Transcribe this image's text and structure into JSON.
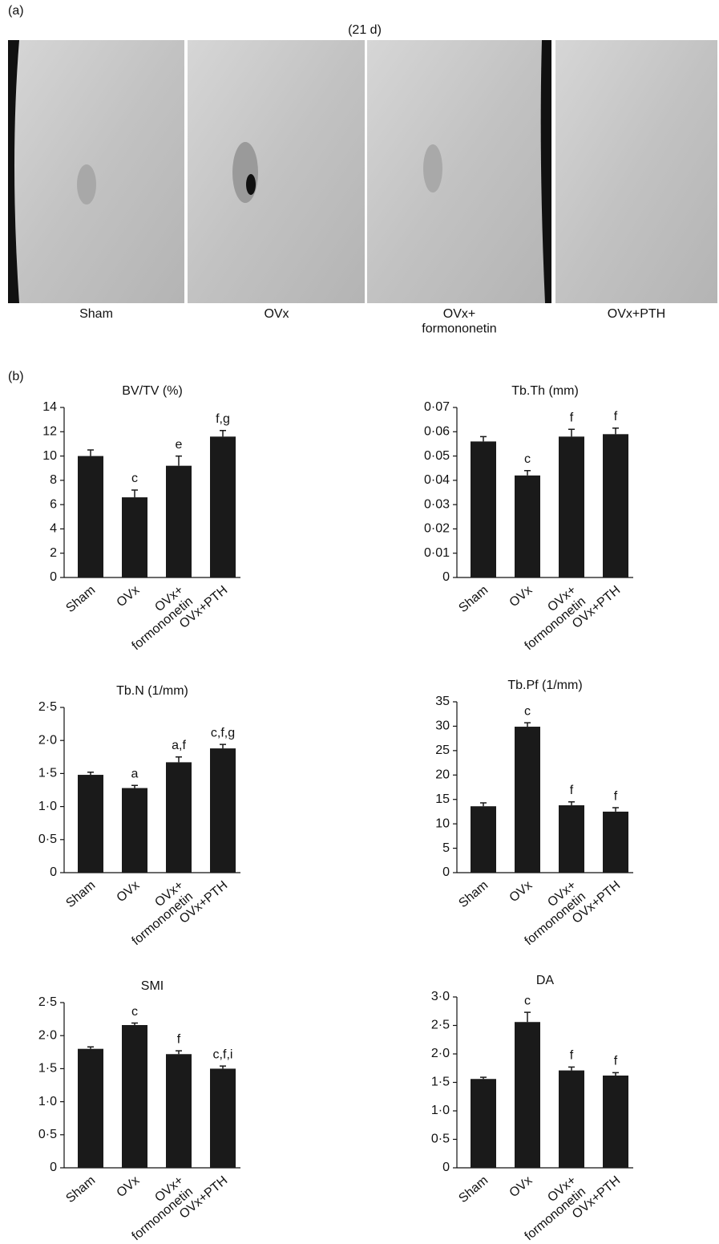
{
  "panel_a": {
    "label": "(a)",
    "title": "(21 d)",
    "captions": [
      "Sham",
      "OVx",
      "OVx+\nformononetin",
      "OVx+PTH"
    ]
  },
  "panel_b": {
    "label": "(b)"
  },
  "chart_data": [
    {
      "type": "bar",
      "title": "BV/TV (%)",
      "categories": [
        "Sham",
        "OVx",
        "OVx+\nformononetin",
        "OVx+PTH"
      ],
      "values": [
        10.0,
        6.6,
        9.2,
        11.6
      ],
      "errors": [
        0.5,
        0.6,
        0.8,
        0.5
      ],
      "annotations": [
        null,
        "c",
        "e",
        "f,g"
      ],
      "color": "#1a1a1a",
      "ylim": [
        0,
        14
      ],
      "yticks": [
        0,
        2,
        4,
        6,
        8,
        10,
        12,
        14
      ]
    },
    {
      "type": "bar",
      "title": "Tb.Th (mm)",
      "categories": [
        "Sham",
        "OVx",
        "OVx+\nformononetin",
        "OVx+PTH"
      ],
      "values": [
        0.056,
        0.042,
        0.058,
        0.059
      ],
      "errors": [
        0.002,
        0.002,
        0.003,
        0.0025
      ],
      "annotations": [
        null,
        "c",
        "f",
        "f"
      ],
      "color": "#1a1a1a",
      "ylim": [
        0,
        0.07
      ],
      "yticks": [
        0,
        {
          "value": 0.01,
          "label": "0·01"
        },
        {
          "value": 0.02,
          "label": "0·02"
        },
        {
          "value": 0.03,
          "label": "0·03"
        },
        {
          "value": 0.04,
          "label": "0·04"
        },
        {
          "value": 0.05,
          "label": "0·05"
        },
        {
          "value": 0.06,
          "label": "0·06"
        },
        {
          "value": 0.07,
          "label": "0·07"
        }
      ]
    },
    {
      "type": "bar",
      "title": "Tb.N (1/mm)",
      "categories": [
        "Sham",
        "OVx",
        "OVx+\nformononetin",
        "OVx+PTH"
      ],
      "values": [
        1.48,
        1.28,
        1.67,
        1.88
      ],
      "errors": [
        0.04,
        0.04,
        0.08,
        0.06
      ],
      "annotations": [
        null,
        "a",
        "a,f",
        "c,f,g"
      ],
      "color": "#1a1a1a",
      "ylim": [
        0,
        2.5
      ],
      "yticks": [
        0,
        {
          "value": 0.5,
          "label": "0·5"
        },
        {
          "value": 1.0,
          "label": "1·0"
        },
        {
          "value": 1.5,
          "label": "1·5"
        },
        {
          "value": 2.0,
          "label": "2·0"
        },
        {
          "value": 2.5,
          "label": "2·5"
        }
      ]
    },
    {
      "type": "bar",
      "title": "Tb.Pf (1/mm)",
      "categories": [
        "Sham",
        "OVx",
        "OVx+\nformononetin",
        "OVx+PTH"
      ],
      "values": [
        13.6,
        29.9,
        13.8,
        12.5
      ],
      "errors": [
        0.7,
        0.8,
        0.7,
        0.8
      ],
      "annotations": [
        null,
        "c",
        "f",
        "f"
      ],
      "color": "#1a1a1a",
      "ylim": [
        0,
        35
      ],
      "yticks": [
        0,
        5,
        10,
        15,
        20,
        25,
        30,
        35
      ]
    },
    {
      "type": "bar",
      "title": "SMI",
      "categories": [
        "Sham",
        "OVx",
        "OVx+\nformononetin",
        "OVx+PTH"
      ],
      "values": [
        1.8,
        2.16,
        1.72,
        1.5
      ],
      "errors": [
        0.03,
        0.03,
        0.05,
        0.04
      ],
      "annotations": [
        null,
        "c",
        "f",
        "c,f,i"
      ],
      "color": "#1a1a1a",
      "ylim": [
        0,
        2.5
      ],
      "yticks": [
        0,
        {
          "value": 0.5,
          "label": "0·5"
        },
        {
          "value": 1.0,
          "label": "1·0"
        },
        {
          "value": 1.5,
          "label": "1·5"
        },
        {
          "value": 2.0,
          "label": "2·0"
        },
        {
          "value": 2.5,
          "label": "2·5"
        }
      ]
    },
    {
      "type": "bar",
      "title": "DA",
      "categories": [
        "Sham",
        "OVx",
        "OVx+\nformononetin",
        "OVx+PTH"
      ],
      "values": [
        1.56,
        2.56,
        1.71,
        1.62
      ],
      "errors": [
        0.03,
        0.17,
        0.06,
        0.05
      ],
      "annotations": [
        null,
        "c",
        "f",
        "f"
      ],
      "color": "#1a1a1a",
      "ylim": [
        0,
        3.0
      ],
      "yticks": [
        0,
        {
          "value": 0.5,
          "label": "0·5"
        },
        {
          "value": 1.0,
          "label": "1·0"
        },
        {
          "value": 1.5,
          "label": "1·5"
        },
        {
          "value": 2.0,
          "label": "2·0"
        },
        {
          "value": 2.5,
          "label": "2·5"
        },
        {
          "value": 3.0,
          "label": "3·0"
        }
      ]
    }
  ]
}
